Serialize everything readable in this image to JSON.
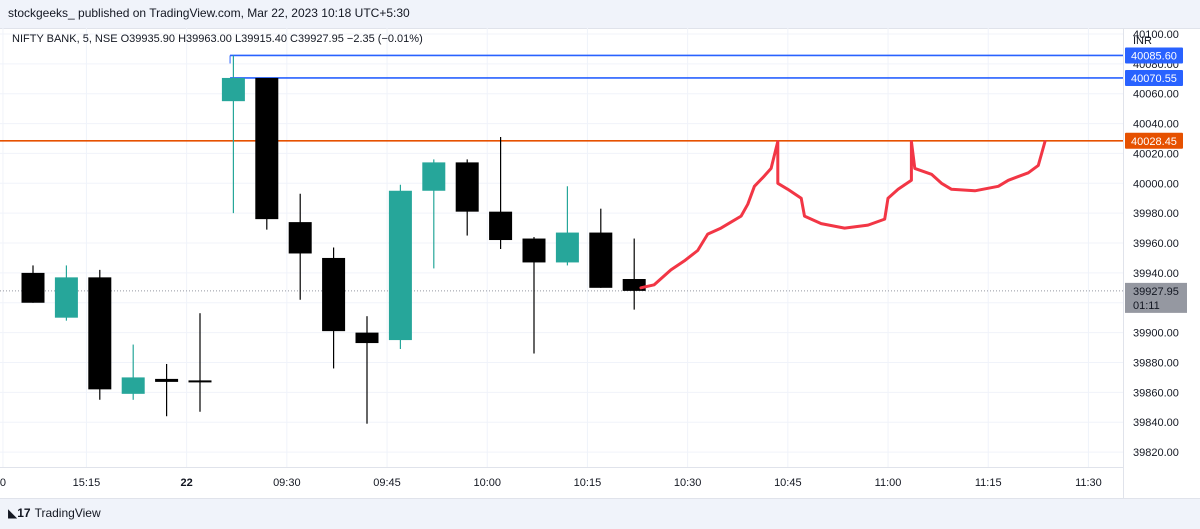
{
  "header": {
    "publisher": "stockgeeks_ published on TradingView.com, Mar 22, 2023 10:18 UTC+5:30"
  },
  "legend": {
    "text": "NIFTY BANK, 5, NSE  O39935.90  H39963.00  L39915.40  C39927.95  −2.35 (−0.01%)"
  },
  "footer": {
    "brand": "TradingView"
  },
  "colors": {
    "up": "#26a69a",
    "down": "#000000",
    "blue_line": "#2962ff",
    "red_line": "#e65100",
    "drawing": "#f23645",
    "grid": "#f0f3fa"
  },
  "chart_data": {
    "type": "candlestick",
    "symbol": "NIFTY BANK",
    "interval": "5",
    "exchange": "NSE",
    "currency": "INR",
    "ylim": [
      39810,
      40104
    ],
    "y_ticks": [
      39820,
      39840,
      39860,
      39880,
      39900,
      39920,
      39940,
      39960,
      39980,
      40000,
      40020,
      40040,
      40060,
      40080,
      40100
    ],
    "y_tick_labels": [
      "39820.00",
      "39840.00",
      "39860.00",
      "39880.00",
      "39900.00",
      "39920.00",
      "39940.00",
      "39960.00",
      "39980.00",
      "40000.00",
      "40020.00",
      "40040.00",
      "40060.00",
      "40080.00",
      "40100.00"
    ],
    "x_ticks": [
      {
        "label": "0",
        "bar": -0.9
      },
      {
        "label": "15:15",
        "bar": 1.6
      },
      {
        "label": "22",
        "bar": 4.6,
        "bold": true
      },
      {
        "label": "09:30",
        "bar": 7.6
      },
      {
        "label": "09:45",
        "bar": 10.6
      },
      {
        "label": "10:00",
        "bar": 13.6
      },
      {
        "label": "10:15",
        "bar": 16.6
      },
      {
        "label": "10:30",
        "bar": 19.6
      },
      {
        "label": "10:45",
        "bar": 22.6
      },
      {
        "label": "11:00",
        "bar": 25.6
      },
      {
        "label": "11:15",
        "bar": 28.6
      },
      {
        "label": "11:30",
        "bar": 31.6
      }
    ],
    "candles": [
      {
        "o": 39940,
        "h": 39945,
        "l": 39920,
        "c": 39920
      },
      {
        "o": 39910,
        "h": 39945,
        "l": 39908,
        "c": 39937
      },
      {
        "o": 39937,
        "h": 39942,
        "l": 39855,
        "c": 39862
      },
      {
        "o": 39859,
        "h": 39892,
        "l": 39855,
        "c": 39870
      },
      {
        "o": 39869,
        "h": 39879,
        "l": 39844,
        "c": 39867
      },
      {
        "o": 39868,
        "h": 39913,
        "l": 39847,
        "c": 39867
      },
      {
        "o": 40055,
        "h": 40085.6,
        "l": 39980,
        "c": 40070.55
      },
      {
        "o": 40070.55,
        "h": 40070.55,
        "l": 39969,
        "c": 39976
      },
      {
        "o": 39974,
        "h": 39993,
        "l": 39922,
        "c": 39953
      },
      {
        "o": 39950,
        "h": 39957,
        "l": 39876,
        "c": 39901
      },
      {
        "o": 39900,
        "h": 39911,
        "l": 39839,
        "c": 39893
      },
      {
        "o": 39895,
        "h": 39999,
        "l": 39889,
        "c": 39995
      },
      {
        "o": 39995,
        "h": 40016,
        "l": 39943,
        "c": 40014
      },
      {
        "o": 40014,
        "h": 40016,
        "l": 39965,
        "c": 39981
      },
      {
        "o": 39981,
        "h": 40031,
        "l": 39956,
        "c": 39962
      },
      {
        "o": 39963,
        "h": 39964,
        "l": 39886,
        "c": 39947
      },
      {
        "o": 39947,
        "h": 39998,
        "l": 39945,
        "c": 39967
      },
      {
        "o": 39967,
        "h": 39983,
        "l": 39930,
        "c": 39930
      },
      {
        "o": 39935.9,
        "h": 39963,
        "l": 39915.4,
        "c": 39927.95
      }
    ],
    "hlines": [
      {
        "value": 40085.6,
        "label": "40085.60",
        "color": "#2962ff",
        "from_bar": 5.9
      },
      {
        "value": 40070.55,
        "label": "40070.55",
        "color": "#2962ff",
        "from_bar": 5.9
      },
      {
        "value": 40028.45,
        "label": "40028.45",
        "color": "#e65100",
        "from_bar": -1
      }
    ],
    "last_price": {
      "value": 39927.95,
      "label": "39927.95",
      "countdown": "01:11"
    },
    "drawing": [
      [
        18.2,
        39930
      ],
      [
        18.6,
        39932
      ],
      [
        19.1,
        39942
      ],
      [
        19.5,
        39948
      ],
      [
        19.9,
        39955
      ],
      [
        20.2,
        39966
      ],
      [
        20.6,
        39970
      ],
      [
        20.9,
        39974
      ],
      [
        21.2,
        39978
      ],
      [
        21.4,
        39986
      ],
      [
        21.6,
        39998
      ],
      [
        21.9,
        40005
      ],
      [
        22.1,
        40010
      ],
      [
        22.3,
        40028
      ],
      [
        22.3,
        40000
      ],
      [
        22.6,
        39996
      ],
      [
        23.0,
        39990
      ],
      [
        23.1,
        39978
      ],
      [
        23.6,
        39973
      ],
      [
        24.3,
        39970
      ],
      [
        25.0,
        39972
      ],
      [
        25.5,
        39976
      ],
      [
        25.6,
        39990
      ],
      [
        25.9,
        39996
      ],
      [
        26.3,
        40002
      ],
      [
        26.3,
        40028
      ],
      [
        26.4,
        40010
      ],
      [
        26.9,
        40006
      ],
      [
        27.2,
        40000
      ],
      [
        27.5,
        39996
      ],
      [
        28.2,
        39995
      ],
      [
        28.9,
        39998
      ],
      [
        29.2,
        40002
      ],
      [
        29.8,
        40007
      ],
      [
        30.1,
        40012
      ],
      [
        30.3,
        40028
      ]
    ]
  }
}
